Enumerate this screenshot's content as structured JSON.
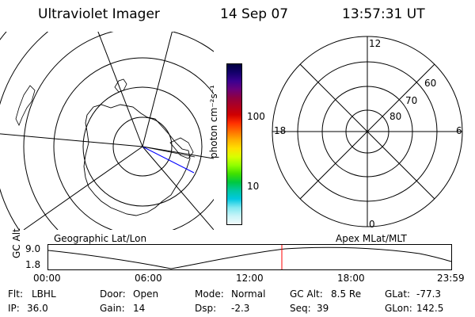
{
  "header": {
    "title": "Ultraviolet Imager",
    "date": "14 Sep 07",
    "time": "13:57:31 UT"
  },
  "colorbar": {
    "label": "photon cm⁻²s⁻¹",
    "ticks": [
      "100",
      "10"
    ],
    "colors": [
      "#000040",
      "#14006b",
      "#3a0090",
      "#6a007a",
      "#900040",
      "#b00020",
      "#d00000",
      "#ff3000",
      "#ff7000",
      "#ffb000",
      "#ffe000",
      "#d8ff00",
      "#90ff00",
      "#40e000",
      "#00c840",
      "#00c8a0",
      "#00c8e0",
      "#80e8f0",
      "#c8f4f8",
      "#f2fbfc"
    ]
  },
  "polar": {
    "mlt_labels": [
      "12",
      "18",
      "6",
      "0"
    ],
    "lat_labels": [
      "60",
      "70",
      "80"
    ]
  },
  "timeline": {
    "left_label": "Geographic Lat/Lon",
    "right_label": "Apex MLat/MLT",
    "axis_label": "GC Alt",
    "y_max": "9.0",
    "y_min": "1.8",
    "x_ticks": [
      "00:00",
      "06:00",
      "12:00",
      "18:00",
      "23:59"
    ],
    "current_marker_color": "#ff0000"
  },
  "info": {
    "row1": {
      "flt_label": "Flt:",
      "flt_value": "LBHL",
      "door_label": "Door:",
      "door_value": "Open",
      "mode_label": "Mode:",
      "mode_value": "Normal",
      "gcalt_label": "GC Alt:",
      "gcalt_value": "8.5 Re",
      "glat_label": "GLat:",
      "glat_value": "-77.3"
    },
    "row2": {
      "ip_label": "IP:",
      "ip_value": "36.0",
      "gain_label": "Gain:",
      "gain_value": "14",
      "dsp_label": "Dsp:",
      "dsp_value": "-2.3",
      "seq_label": "Seq:",
      "seq_value": "39",
      "glon_label": "GLon:",
      "glon_value": "142.5"
    }
  }
}
